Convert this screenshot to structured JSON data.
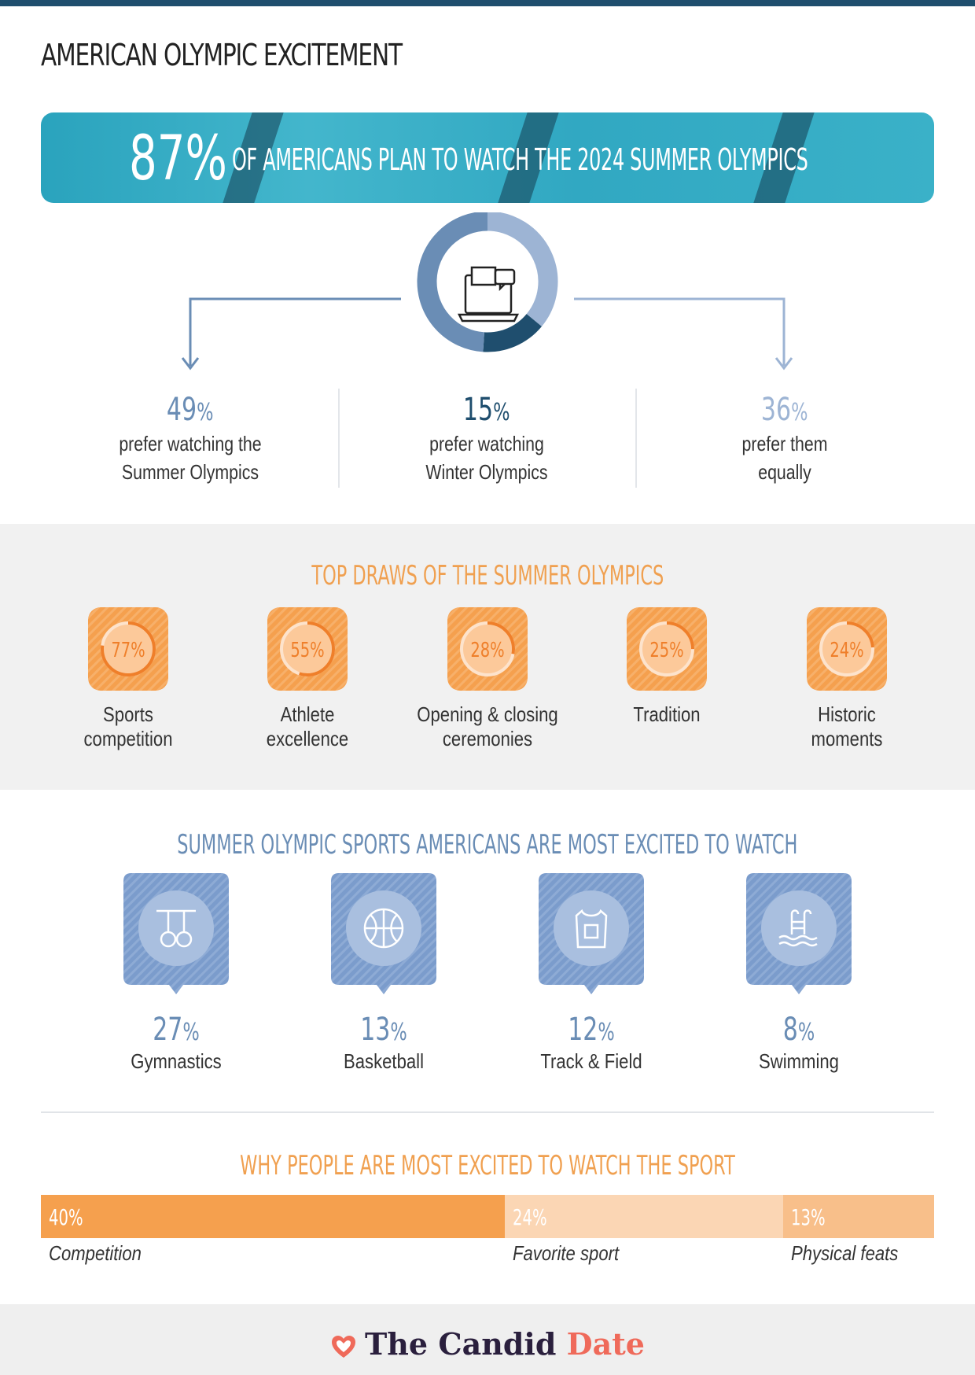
{
  "title": "AMERICAN OLYMPIC EXCITEMENT",
  "banner": {
    "pct": "87%",
    "text": "OF AMERICANS PLAN TO WATCH THE 2024 SUMMER OLYMPICS"
  },
  "preference": [
    {
      "value": "49",
      "unit": "%",
      "label_line1": "prefer watching the",
      "label_line2": "Summer Olympics",
      "color": "#6a8db5"
    },
    {
      "value": "15",
      "unit": "%",
      "label_line1": "prefer watching",
      "label_line2": "Winter Olympics",
      "color": "#1f4e6e"
    },
    {
      "value": "36",
      "unit": "%",
      "label_line1": "prefer them",
      "label_line2": "equally",
      "color": "#9db4d4"
    }
  ],
  "top_draws": {
    "title": "TOP DRAWS OF THE SUMMER OLYMPICS",
    "items": [
      {
        "pct": "77%",
        "value": 77,
        "line1": "Sports",
        "line2": "competition"
      },
      {
        "pct": "55%",
        "value": 55,
        "line1": "Athlete",
        "line2": "excellence"
      },
      {
        "pct": "28%",
        "value": 28,
        "line1": "Opening & closing",
        "line2": "ceremonies"
      },
      {
        "pct": "25%",
        "value": 25,
        "line1": "Tradition",
        "line2": ""
      },
      {
        "pct": "24%",
        "value": 24,
        "line1": "Historic",
        "line2": "moments"
      }
    ]
  },
  "sports": {
    "title": "SUMMER OLYMPIC SPORTS AMERICANS ARE MOST EXCITED TO WATCH",
    "items": [
      {
        "value": "27",
        "unit": "%",
        "label": "Gymnastics",
        "icon": "gymnastics-rings-icon"
      },
      {
        "value": "13",
        "unit": "%",
        "label": "Basketball",
        "icon": "basketball-icon"
      },
      {
        "value": "12",
        "unit": "%",
        "label": "Track & Field",
        "icon": "jersey-icon"
      },
      {
        "value": "8",
        "unit": "%",
        "label": "Swimming",
        "icon": "pool-ladder-icon"
      }
    ]
  },
  "why": {
    "title": "WHY PEOPLE ARE MOST EXCITED TO WATCH THE SPORT",
    "items": [
      {
        "pct": "40%",
        "value": 40,
        "label": "Competition",
        "color": "#f5a04e"
      },
      {
        "pct": "24%",
        "value": 24,
        "label": "Favorite sport",
        "color": "#fbd6b4"
      },
      {
        "pct": "13%",
        "value": 13,
        "label": "Physical feats",
        "color": "#f8bf8a"
      }
    ]
  },
  "brand": {
    "part1": "The Candid",
    "part2": "Date"
  },
  "chart_data": [
    {
      "type": "pie",
      "categories": [
        "prefer watching the Summer Olympics",
        "prefer watching Winter Olympics",
        "prefer them equally"
      ],
      "values": [
        49,
        15,
        36
      ]
    },
    {
      "type": "bar",
      "title": "TOP DRAWS OF THE SUMMER OLYMPICS",
      "categories": [
        "Sports competition",
        "Athlete excellence",
        "Opening & closing ceremonies",
        "Tradition",
        "Historic moments"
      ],
      "values": [
        77,
        55,
        28,
        25,
        24
      ]
    },
    {
      "type": "bar",
      "title": "SUMMER OLYMPIC SPORTS AMERICANS ARE MOST EXCITED TO WATCH",
      "categories": [
        "Gymnastics",
        "Basketball",
        "Track & Field",
        "Swimming"
      ],
      "values": [
        27,
        13,
        12,
        8
      ]
    },
    {
      "type": "bar",
      "title": "WHY PEOPLE ARE MOST EXCITED TO WATCH THE SPORT",
      "categories": [
        "Competition",
        "Favorite sport",
        "Physical feats"
      ],
      "values": [
        40,
        24,
        13
      ]
    }
  ]
}
